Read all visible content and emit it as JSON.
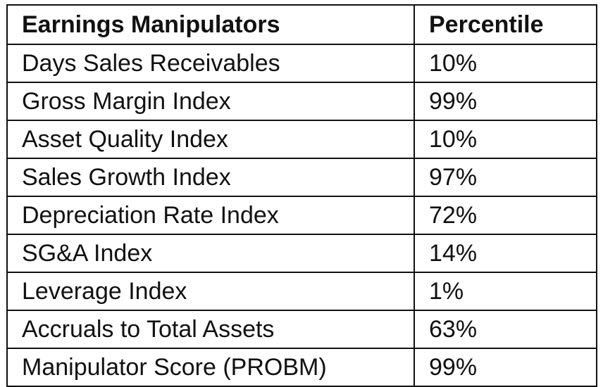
{
  "table": {
    "headers": [
      "Earnings Manipulators",
      "Percentile"
    ],
    "rows": [
      [
        "Days Sales Receivables",
        "10%"
      ],
      [
        "Gross Margin Index",
        "99%"
      ],
      [
        "Asset Quality Index",
        "10%"
      ],
      [
        "Sales Growth Index",
        "97%"
      ],
      [
        "Depreciation Rate Index",
        "72%"
      ],
      [
        "SG&A Index",
        "14%"
      ],
      [
        "Leverage Index",
        "1%"
      ],
      [
        "Accruals to Total Assets",
        "63%"
      ],
      [
        "Manipulator Score (PROBM)",
        "99%"
      ]
    ]
  }
}
